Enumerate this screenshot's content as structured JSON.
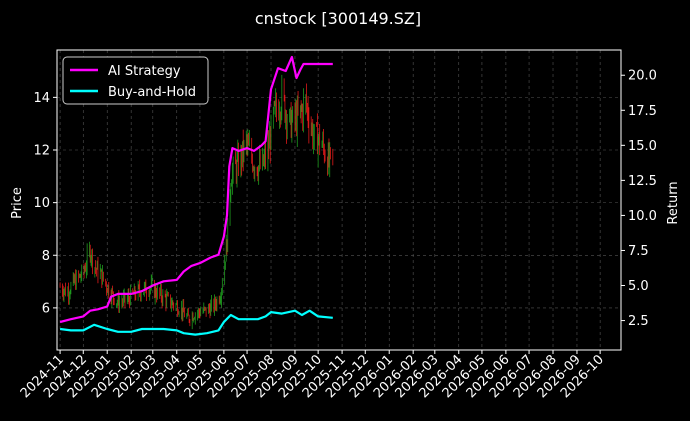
{
  "chart_data": {
    "type": "line",
    "title": "cnstock [300149.SZ]",
    "xlabel": "",
    "ylabel_left": "Price",
    "ylabel_right": "Return",
    "x_ticks": [
      "2024-11",
      "2024-12",
      "2025-01",
      "2025-02",
      "2025-03",
      "2025-04",
      "2025-05",
      "2025-06",
      "2025-07",
      "2025-08",
      "2025-09",
      "2025-10",
      "2025-11",
      "2025-12",
      "2026-01",
      "2026-02",
      "2026-03",
      "2026-04",
      "2026-05",
      "2026-06",
      "2026-07",
      "2026-08",
      "2026-09",
      "2026-10"
    ],
    "x_range": [
      "2024-10-28",
      "2026-10-28"
    ],
    "left_axis": {
      "ylim": [
        4.4,
        15.8
      ],
      "ticks": [
        "6",
        "8",
        "10",
        "12",
        "14"
      ]
    },
    "right_axis": {
      "ylim": [
        0.4,
        21.8
      ],
      "ticks": [
        "2.5",
        "5.0",
        "7.5",
        "10.0",
        "12.5",
        "15.0",
        "17.5",
        "20.0"
      ]
    },
    "grid": true,
    "legend": {
      "placement": "top-left",
      "entries": [
        "AI Strategy",
        "Buy-and-Hold"
      ]
    },
    "colors": {
      "background": "#000000",
      "ai_strategy": "#ff00ff",
      "buy_and_hold": "#00ffff",
      "candle_up": "#1e9a1e",
      "candle_down": "#e01a1a",
      "grid": "#555555",
      "text": "#ffffff"
    },
    "series": [
      {
        "name": "AI Strategy",
        "axis": "right",
        "points": [
          [
            "2024-11-01",
            2.4
          ],
          [
            "2024-11-15",
            2.6
          ],
          [
            "2024-12-01",
            2.8
          ],
          [
            "2024-12-10",
            3.2
          ],
          [
            "2024-12-20",
            3.3
          ],
          [
            "2025-01-01",
            3.5
          ],
          [
            "2025-01-06",
            4.2
          ],
          [
            "2025-01-15",
            4.4
          ],
          [
            "2025-02-01",
            4.4
          ],
          [
            "2025-02-15",
            4.6
          ],
          [
            "2025-03-01",
            5.0
          ],
          [
            "2025-03-15",
            5.3
          ],
          [
            "2025-04-01",
            5.4
          ],
          [
            "2025-04-10",
            6.0
          ],
          [
            "2025-04-20",
            6.4
          ],
          [
            "2025-05-01",
            6.6
          ],
          [
            "2025-05-15",
            7.0
          ],
          [
            "2025-05-25",
            7.2
          ],
          [
            "2025-06-01",
            8.5
          ],
          [
            "2025-06-05",
            10.0
          ],
          [
            "2025-06-08",
            13.5
          ],
          [
            "2025-06-12",
            14.8
          ],
          [
            "2025-06-20",
            14.6
          ],
          [
            "2025-07-01",
            14.8
          ],
          [
            "2025-07-10",
            14.6
          ],
          [
            "2025-07-20",
            15.0
          ],
          [
            "2025-07-25",
            15.3
          ],
          [
            "2025-08-01",
            19.0
          ],
          [
            "2025-08-10",
            20.5
          ],
          [
            "2025-08-20",
            20.3
          ],
          [
            "2025-08-28",
            21.3
          ],
          [
            "2025-09-03",
            19.8
          ],
          [
            "2025-09-08",
            20.4
          ],
          [
            "2025-09-12",
            20.8
          ],
          [
            "2025-09-20",
            20.8
          ],
          [
            "2025-10-01",
            20.8
          ],
          [
            "2025-10-20",
            20.8
          ]
        ]
      },
      {
        "name": "Buy-and-Hold",
        "axis": "right",
        "points": [
          [
            "2024-11-01",
            1.9
          ],
          [
            "2024-11-15",
            1.8
          ],
          [
            "2024-12-01",
            1.8
          ],
          [
            "2024-12-15",
            2.2
          ],
          [
            "2025-01-01",
            1.9
          ],
          [
            "2025-01-15",
            1.7
          ],
          [
            "2025-02-01",
            1.7
          ],
          [
            "2025-02-15",
            1.9
          ],
          [
            "2025-03-01",
            1.9
          ],
          [
            "2025-03-15",
            1.9
          ],
          [
            "2025-04-01",
            1.8
          ],
          [
            "2025-04-10",
            1.6
          ],
          [
            "2025-04-25",
            1.5
          ],
          [
            "2025-05-10",
            1.6
          ],
          [
            "2025-05-25",
            1.8
          ],
          [
            "2025-06-01",
            2.4
          ],
          [
            "2025-06-10",
            2.9
          ],
          [
            "2025-06-20",
            2.6
          ],
          [
            "2025-07-01",
            2.6
          ],
          [
            "2025-07-15",
            2.6
          ],
          [
            "2025-07-25",
            2.8
          ],
          [
            "2025-08-01",
            3.1
          ],
          [
            "2025-08-15",
            3.0
          ],
          [
            "2025-09-01",
            3.2
          ],
          [
            "2025-09-10",
            2.9
          ],
          [
            "2025-09-20",
            3.2
          ],
          [
            "2025-10-01",
            2.8
          ],
          [
            "2025-10-20",
            2.7
          ]
        ]
      }
    ],
    "price_path": {
      "name": "Price",
      "axis": "left",
      "points": [
        [
          "2024-11-01",
          6.8
        ],
        [
          "2024-11-10",
          6.6
        ],
        [
          "2024-11-20",
          7.0
        ],
        [
          "2024-12-01",
          7.3
        ],
        [
          "2024-12-10",
          8.2
        ],
        [
          "2024-12-15",
          7.6
        ],
        [
          "2024-12-25",
          7.2
        ],
        [
          "2025-01-05",
          6.6
        ],
        [
          "2025-01-15",
          6.2
        ],
        [
          "2025-01-25",
          6.3
        ],
        [
          "2025-02-10",
          6.6
        ],
        [
          "2025-02-25",
          6.8
        ],
        [
          "2025-03-10",
          6.5
        ],
        [
          "2025-03-25",
          6.2
        ],
        [
          "2025-04-05",
          6.0
        ],
        [
          "2025-04-15",
          5.6
        ],
        [
          "2025-04-25",
          5.8
        ],
        [
          "2025-05-10",
          5.9
        ],
        [
          "2025-05-20",
          6.1
        ],
        [
          "2025-05-28",
          6.6
        ],
        [
          "2025-06-05",
          8.5
        ],
        [
          "2025-06-10",
          11.0
        ],
        [
          "2025-06-20",
          11.5
        ],
        [
          "2025-06-30",
          12.2
        ],
        [
          "2025-07-10",
          11.5
        ],
        [
          "2025-07-20",
          11.3
        ],
        [
          "2025-07-28",
          12.0
        ],
        [
          "2025-08-05",
          13.3
        ],
        [
          "2025-08-15",
          14.0
        ],
        [
          "2025-08-25",
          13.0
        ],
        [
          "2025-09-05",
          13.2
        ],
        [
          "2025-09-15",
          13.8
        ],
        [
          "2025-09-25",
          12.5
        ],
        [
          "2025-10-05",
          12.3
        ],
        [
          "2025-10-15",
          11.5
        ],
        [
          "2025-10-20",
          11.7
        ]
      ]
    }
  }
}
